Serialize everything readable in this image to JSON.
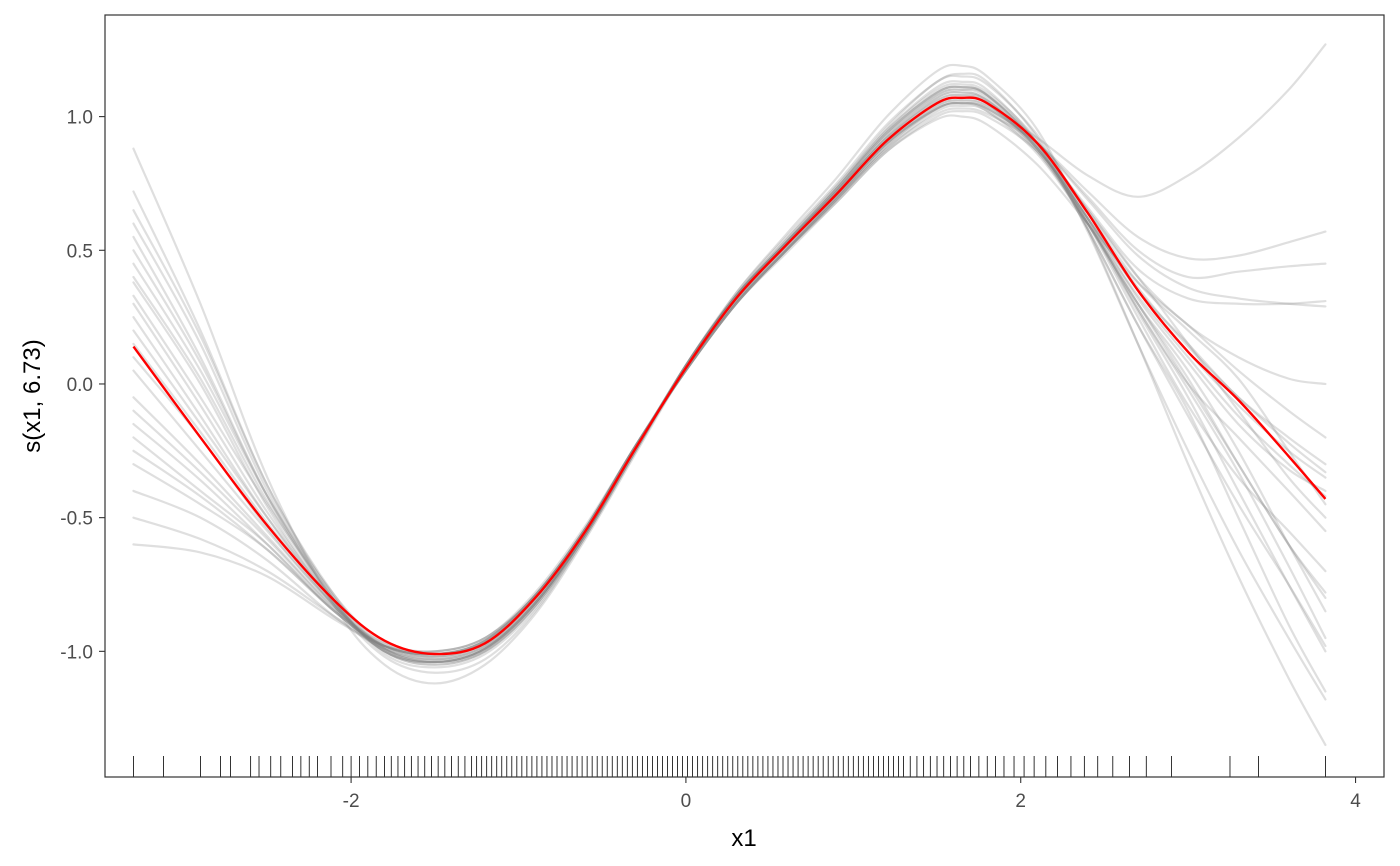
{
  "chart_data": {
    "type": "line",
    "title": "",
    "xlabel": "x1",
    "ylabel": "s(x1, 6.73)",
    "xlim": [
      -3.47,
      4.17
    ],
    "ylim": [
      -1.47,
      1.38
    ],
    "x_ticks": [
      {
        "value": -2,
        "label": "-2"
      },
      {
        "value": 0,
        "label": "0"
      },
      {
        "value": 2,
        "label": "2"
      },
      {
        "value": 4,
        "label": "4"
      }
    ],
    "y_ticks": [
      {
        "value": -1.0,
        "label": "-1.0"
      },
      {
        "value": -0.5,
        "label": "-0.5"
      },
      {
        "value": 0.0,
        "label": "0.0"
      },
      {
        "value": 0.5,
        "label": "0.5"
      },
      {
        "value": 1.0,
        "label": "1.0"
      }
    ],
    "grid": false,
    "colors": {
      "fit": "#ff0000",
      "samples": "#808080",
      "rug": "#000000",
      "frame": "#333333"
    },
    "x": [
      -3.3,
      -2.9,
      -2.5,
      -2.1,
      -1.8,
      -1.5,
      -1.2,
      -0.9,
      -0.6,
      -0.3,
      0.0,
      0.3,
      0.6,
      0.9,
      1.2,
      1.5,
      1.65,
      1.8,
      2.1,
      2.4,
      2.7,
      3.0,
      3.3,
      3.6,
      3.82
    ],
    "fit": [
      0.14,
      -0.2,
      -0.53,
      -0.81,
      -0.96,
      -1.01,
      -0.97,
      -0.8,
      -0.55,
      -0.24,
      0.06,
      0.32,
      0.52,
      0.71,
      0.91,
      1.05,
      1.07,
      1.05,
      0.9,
      0.64,
      0.35,
      0.12,
      -0.06,
      -0.27,
      -0.43
    ],
    "samples": [
      {
        "values": [
          0.55,
          0.1,
          -0.42,
          -0.82,
          -1.02,
          -1.08,
          -1.03,
          -0.85,
          -0.57,
          -0.25,
          0.07,
          0.33,
          0.54,
          0.74,
          0.96,
          1.13,
          1.15,
          1.12,
          0.93,
          0.62,
          0.28,
          -0.02,
          -0.33,
          -0.68,
          -0.95
        ]
      },
      {
        "values": [
          -0.6,
          -0.63,
          -0.72,
          -0.88,
          -0.98,
          -1.0,
          -0.95,
          -0.78,
          -0.53,
          -0.23,
          0.06,
          0.31,
          0.5,
          0.68,
          0.87,
          0.99,
          1.0,
          0.97,
          0.82,
          0.6,
          0.38,
          0.22,
          0.05,
          -0.1,
          -0.2
        ]
      },
      {
        "values": [
          0.88,
          0.3,
          -0.35,
          -0.83,
          -1.05,
          -1.12,
          -1.05,
          -0.86,
          -0.58,
          -0.26,
          0.06,
          0.34,
          0.56,
          0.77,
          1.0,
          1.17,
          1.19,
          1.15,
          0.95,
          0.58,
          0.15,
          -0.3,
          -0.72,
          -1.1,
          -1.35
        ]
      },
      {
        "values": [
          -0.4,
          -0.5,
          -0.66,
          -0.87,
          -0.99,
          -1.02,
          -0.97,
          -0.8,
          -0.55,
          -0.24,
          0.05,
          0.3,
          0.5,
          0.7,
          0.9,
          1.04,
          1.06,
          1.04,
          0.92,
          0.78,
          0.7,
          0.78,
          0.92,
          1.1,
          1.27
        ]
      },
      {
        "values": [
          0.33,
          -0.05,
          -0.45,
          -0.8,
          -0.98,
          -1.03,
          -0.99,
          -0.82,
          -0.56,
          -0.24,
          0.07,
          0.33,
          0.53,
          0.72,
          0.93,
          1.08,
          1.1,
          1.07,
          0.88,
          0.6,
          0.3,
          0.05,
          -0.25,
          -0.6,
          -0.85
        ]
      },
      {
        "values": [
          -0.1,
          -0.33,
          -0.58,
          -0.84,
          -0.97,
          -1.0,
          -0.95,
          -0.79,
          -0.54,
          -0.23,
          0.06,
          0.31,
          0.51,
          0.7,
          0.9,
          1.03,
          1.05,
          1.03,
          0.9,
          0.7,
          0.5,
          0.4,
          0.42,
          0.44,
          0.45
        ]
      },
      {
        "values": [
          0.72,
          0.2,
          -0.38,
          -0.8,
          -1.01,
          -1.06,
          -1.01,
          -0.84,
          -0.57,
          -0.25,
          0.07,
          0.33,
          0.53,
          0.73,
          0.95,
          1.11,
          1.13,
          1.1,
          0.9,
          0.58,
          0.22,
          -0.1,
          -0.5,
          -0.9,
          -1.15
        ]
      },
      {
        "values": [
          -0.3,
          -0.45,
          -0.62,
          -0.85,
          -0.98,
          -1.01,
          -0.96,
          -0.79,
          -0.54,
          -0.23,
          0.05,
          0.3,
          0.5,
          0.69,
          0.88,
          1.01,
          1.03,
          1.01,
          0.9,
          0.72,
          0.55,
          0.47,
          0.48,
          0.53,
          0.57
        ]
      },
      {
        "values": [
          0.2,
          -0.15,
          -0.5,
          -0.82,
          -0.99,
          -1.04,
          -0.99,
          -0.82,
          -0.56,
          -0.24,
          0.06,
          0.32,
          0.52,
          0.72,
          0.92,
          1.07,
          1.09,
          1.06,
          0.88,
          0.62,
          0.35,
          0.15,
          -0.05,
          -0.2,
          -0.3
        ]
      },
      {
        "values": [
          0.45,
          0.05,
          -0.42,
          -0.79,
          -0.97,
          -1.02,
          -0.98,
          -0.81,
          -0.55,
          -0.24,
          0.07,
          0.33,
          0.53,
          0.72,
          0.93,
          1.08,
          1.1,
          1.08,
          0.9,
          0.64,
          0.38,
          0.2,
          0.02,
          -0.25,
          -0.45
        ]
      },
      {
        "values": [
          0.05,
          -0.25,
          -0.55,
          -0.83,
          -0.98,
          -1.02,
          -0.97,
          -0.8,
          -0.55,
          -0.24,
          0.06,
          0.31,
          0.51,
          0.7,
          0.9,
          1.04,
          1.06,
          1.04,
          0.89,
          0.66,
          0.43,
          0.32,
          0.3,
          0.3,
          0.31
        ]
      },
      {
        "values": [
          0.6,
          0.15,
          -0.4,
          -0.81,
          -1.0,
          -1.05,
          -1.0,
          -0.83,
          -0.56,
          -0.25,
          0.06,
          0.33,
          0.54,
          0.74,
          0.95,
          1.1,
          1.12,
          1.09,
          0.91,
          0.61,
          0.27,
          -0.05,
          -0.4,
          -0.75,
          -1.0
        ]
      },
      {
        "values": [
          -0.2,
          -0.4,
          -0.6,
          -0.85,
          -0.98,
          -1.01,
          -0.96,
          -0.79,
          -0.54,
          -0.23,
          0.05,
          0.3,
          0.5,
          0.69,
          0.89,
          1.03,
          1.05,
          1.03,
          0.9,
          0.69,
          0.48,
          0.36,
          0.32,
          0.3,
          0.29
        ]
      },
      {
        "values": [
          0.38,
          0.0,
          -0.46,
          -0.82,
          -1.0,
          -1.04,
          -0.99,
          -0.82,
          -0.56,
          -0.24,
          0.06,
          0.32,
          0.53,
          0.73,
          0.94,
          1.09,
          1.11,
          1.08,
          0.89,
          0.6,
          0.28,
          0.0,
          -0.2,
          -0.4,
          -0.55
        ]
      },
      {
        "values": [
          0.25,
          -0.12,
          -0.5,
          -0.83,
          -1.0,
          -1.04,
          -0.99,
          -0.82,
          -0.56,
          -0.24,
          0.06,
          0.32,
          0.52,
          0.72,
          0.92,
          1.06,
          1.08,
          1.06,
          0.9,
          0.65,
          0.4,
          0.22,
          0.1,
          0.02,
          0.0
        ]
      },
      {
        "values": [
          -0.5,
          -0.58,
          -0.7,
          -0.87,
          -0.98,
          -1.0,
          -0.95,
          -0.79,
          -0.54,
          -0.23,
          0.05,
          0.3,
          0.49,
          0.68,
          0.87,
          1.0,
          1.02,
          1.0,
          0.87,
          0.65,
          0.4,
          0.15,
          -0.1,
          -0.35,
          -0.5
        ]
      },
      {
        "values": [
          0.1,
          -0.2,
          -0.54,
          -0.83,
          -0.99,
          -1.03,
          -0.98,
          -0.81,
          -0.55,
          -0.24,
          0.06,
          0.32,
          0.52,
          0.71,
          0.91,
          1.06,
          1.08,
          1.05,
          0.87,
          0.6,
          0.3,
          0.02,
          -0.3,
          -0.6,
          -0.8
        ]
      },
      {
        "values": [
          0.65,
          0.18,
          -0.38,
          -0.79,
          -0.99,
          -1.04,
          -1.0,
          -0.83,
          -0.57,
          -0.25,
          0.07,
          0.34,
          0.55,
          0.75,
          0.97,
          1.13,
          1.16,
          1.13,
          0.92,
          0.57,
          0.15,
          -0.25,
          -0.62,
          -0.95,
          -1.18
        ]
      },
      {
        "values": [
          -0.05,
          -0.3,
          -0.57,
          -0.84,
          -0.98,
          -1.01,
          -0.96,
          -0.8,
          -0.55,
          -0.24,
          0.06,
          0.31,
          0.51,
          0.7,
          0.9,
          1.03,
          1.05,
          1.03,
          0.88,
          0.62,
          0.35,
          0.12,
          -0.08,
          -0.25,
          -0.35
        ]
      },
      {
        "values": [
          0.5,
          0.08,
          -0.42,
          -0.81,
          -1.0,
          -1.05,
          -1.0,
          -0.83,
          -0.56,
          -0.24,
          0.07,
          0.33,
          0.53,
          0.73,
          0.94,
          1.09,
          1.11,
          1.08,
          0.9,
          0.6,
          0.25,
          -0.08,
          -0.35,
          -0.55,
          -0.7
        ]
      },
      {
        "values": [
          0.3,
          -0.08,
          -0.48,
          -0.82,
          -1.0,
          -1.04,
          -0.99,
          -0.82,
          -0.56,
          -0.24,
          0.06,
          0.32,
          0.52,
          0.72,
          0.92,
          1.07,
          1.09,
          1.06,
          0.88,
          0.62,
          0.32,
          0.08,
          -0.15,
          -0.32,
          -0.4
        ]
      },
      {
        "values": [
          -0.25,
          -0.42,
          -0.62,
          -0.85,
          -0.98,
          -1.01,
          -0.96,
          -0.79,
          -0.54,
          -0.23,
          0.05,
          0.3,
          0.5,
          0.69,
          0.88,
          1.02,
          1.04,
          1.02,
          0.87,
          0.6,
          0.3,
          0.0,
          -0.3,
          -0.6,
          -0.78
        ]
      },
      {
        "values": [
          0.15,
          -0.18,
          -0.52,
          -0.83,
          -0.99,
          -1.03,
          -0.98,
          -0.81,
          -0.55,
          -0.24,
          0.06,
          0.32,
          0.52,
          0.71,
          0.91,
          1.05,
          1.07,
          1.05,
          0.88,
          0.62,
          0.36,
          0.14,
          -0.05,
          -0.22,
          -0.33
        ]
      },
      {
        "values": [
          0.4,
          0.02,
          -0.44,
          -0.81,
          -0.99,
          -1.04,
          -0.99,
          -0.82,
          -0.56,
          -0.24,
          0.07,
          0.33,
          0.53,
          0.73,
          0.94,
          1.09,
          1.11,
          1.08,
          0.89,
          0.58,
          0.22,
          -0.12,
          -0.45,
          -0.75,
          -0.98
        ]
      },
      {
        "values": [
          -0.15,
          -0.36,
          -0.6,
          -0.85,
          -0.98,
          -1.01,
          -0.96,
          -0.79,
          -0.54,
          -0.23,
          0.05,
          0.3,
          0.5,
          0.69,
          0.89,
          1.03,
          1.05,
          1.02,
          0.86,
          0.6,
          0.33,
          0.1,
          -0.12,
          -0.3,
          -0.42
        ]
      }
    ],
    "rug_x": [
      -3.3,
      -3.12,
      -2.9,
      -2.78,
      -2.72,
      -2.6,
      -2.55,
      -2.48,
      -2.42,
      -2.35,
      -2.3,
      -2.25,
      -2.2,
      -2.12,
      -2.05,
      -2.0,
      -1.95,
      -1.9,
      -1.85,
      -1.8,
      -1.76,
      -1.72,
      -1.68,
      -1.64,
      -1.6,
      -1.56,
      -1.52,
      -1.48,
      -1.44,
      -1.4,
      -1.36,
      -1.32,
      -1.28,
      -1.25,
      -1.22,
      -1.19,
      -1.16,
      -1.13,
      -1.1,
      -1.07,
      -1.04,
      -1.01,
      -0.98,
      -0.95,
      -0.92,
      -0.89,
      -0.86,
      -0.83,
      -0.8,
      -0.77,
      -0.74,
      -0.71,
      -0.68,
      -0.65,
      -0.62,
      -0.59,
      -0.56,
      -0.53,
      -0.5,
      -0.47,
      -0.44,
      -0.41,
      -0.38,
      -0.35,
      -0.32,
      -0.29,
      -0.26,
      -0.23,
      -0.2,
      -0.17,
      -0.14,
      -0.11,
      -0.08,
      -0.05,
      -0.02,
      0.01,
      0.04,
      0.07,
      0.1,
      0.13,
      0.16,
      0.19,
      0.22,
      0.25,
      0.28,
      0.31,
      0.34,
      0.37,
      0.4,
      0.43,
      0.46,
      0.49,
      0.52,
      0.55,
      0.58,
      0.61,
      0.64,
      0.67,
      0.7,
      0.73,
      0.76,
      0.79,
      0.82,
      0.85,
      0.88,
      0.91,
      0.94,
      0.97,
      1.0,
      1.03,
      1.06,
      1.09,
      1.12,
      1.15,
      1.18,
      1.21,
      1.24,
      1.27,
      1.3,
      1.34,
      1.38,
      1.42,
      1.46,
      1.5,
      1.54,
      1.58,
      1.62,
      1.66,
      1.7,
      1.75,
      1.8,
      1.85,
      1.9,
      1.96,
      2.02,
      2.08,
      2.15,
      2.22,
      2.3,
      2.38,
      2.46,
      2.55,
      2.65,
      2.75,
      2.9,
      3.25,
      3.42,
      3.82
    ]
  }
}
